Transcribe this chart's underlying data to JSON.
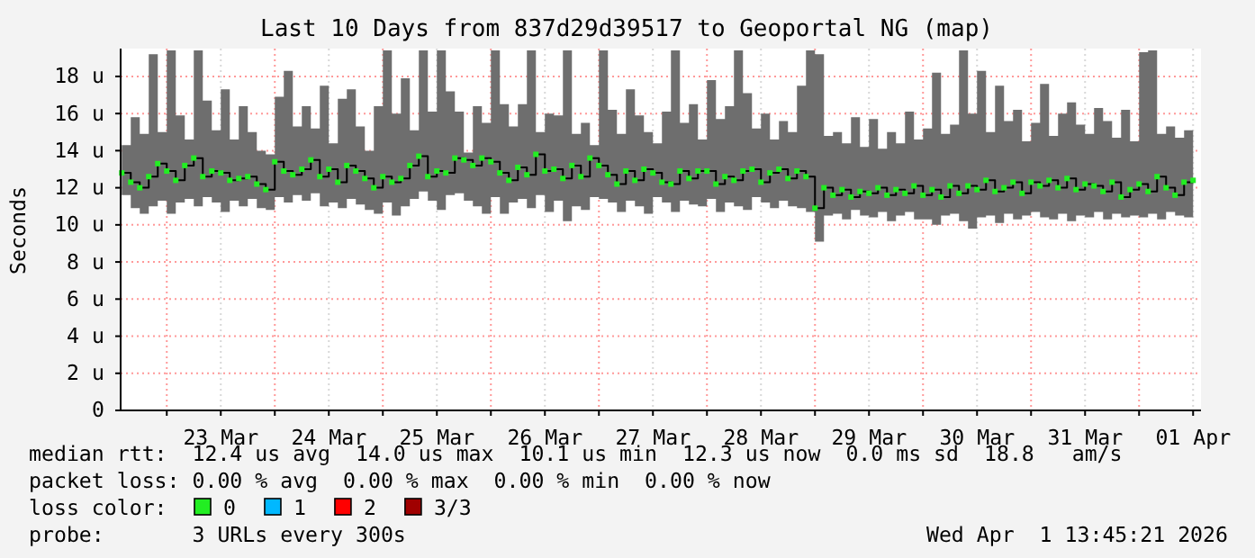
{
  "chart_data": {
    "type": "step",
    "title": "Last 10 Days from 837d29d39517 to Geoportal NG (map)",
    "ylabel": "Seconds",
    "x": [
      "2026-03-22T14:00",
      "2026-03-22T16:00",
      "2026-03-22T18:00",
      "2026-03-22T20:00",
      "2026-03-22T22:00",
      "2026-03-23T00:00",
      "2026-03-23T02:00",
      "2026-03-23T04:00",
      "2026-03-23T06:00",
      "2026-03-23T08:00",
      "2026-03-23T10:00",
      "2026-03-23T12:00",
      "2026-03-23T14:00",
      "2026-03-23T16:00",
      "2026-03-23T18:00",
      "2026-03-23T20:00",
      "2026-03-23T22:00",
      "2026-03-24T00:00",
      "2026-03-24T02:00",
      "2026-03-24T04:00",
      "2026-03-24T06:00",
      "2026-03-24T08:00",
      "2026-03-24T10:00",
      "2026-03-24T12:00",
      "2026-03-24T14:00",
      "2026-03-24T16:00",
      "2026-03-24T18:00",
      "2026-03-24T20:00",
      "2026-03-24T22:00",
      "2026-03-25T00:00",
      "2026-03-25T02:00",
      "2026-03-25T04:00",
      "2026-03-25T06:00",
      "2026-03-25T08:00",
      "2026-03-25T10:00",
      "2026-03-25T12:00",
      "2026-03-25T14:00",
      "2026-03-25T16:00",
      "2026-03-25T18:00",
      "2026-03-25T20:00",
      "2026-03-25T22:00",
      "2026-03-26T00:00",
      "2026-03-26T02:00",
      "2026-03-26T04:00",
      "2026-03-26T06:00",
      "2026-03-26T08:00",
      "2026-03-26T10:00",
      "2026-03-26T12:00",
      "2026-03-26T14:00",
      "2026-03-26T16:00",
      "2026-03-26T18:00",
      "2026-03-26T20:00",
      "2026-03-26T22:00",
      "2026-03-27T00:00",
      "2026-03-27T02:00",
      "2026-03-27T04:00",
      "2026-03-27T06:00",
      "2026-03-27T08:00",
      "2026-03-27T10:00",
      "2026-03-27T12:00",
      "2026-03-27T14:00",
      "2026-03-27T16:00",
      "2026-03-27T18:00",
      "2026-03-27T20:00",
      "2026-03-27T22:00",
      "2026-03-28T00:00",
      "2026-03-28T02:00",
      "2026-03-28T04:00",
      "2026-03-28T06:00",
      "2026-03-28T08:00",
      "2026-03-28T10:00",
      "2026-03-28T12:00",
      "2026-03-28T14:00",
      "2026-03-28T16:00",
      "2026-03-28T18:00",
      "2026-03-28T20:00",
      "2026-03-28T22:00",
      "2026-03-29T00:00",
      "2026-03-29T02:00",
      "2026-03-29T04:00",
      "2026-03-29T06:00",
      "2026-03-29T08:00",
      "2026-03-29T10:00",
      "2026-03-29T12:00",
      "2026-03-29T14:00",
      "2026-03-29T16:00",
      "2026-03-29T18:00",
      "2026-03-29T20:00",
      "2026-03-29T22:00",
      "2026-03-30T00:00",
      "2026-03-30T02:00",
      "2026-03-30T04:00",
      "2026-03-30T06:00",
      "2026-03-30T08:00",
      "2026-03-30T10:00",
      "2026-03-30T12:00",
      "2026-03-30T14:00",
      "2026-03-30T16:00",
      "2026-03-30T18:00",
      "2026-03-30T20:00",
      "2026-03-30T22:00",
      "2026-03-31T00:00",
      "2026-03-31T02:00",
      "2026-03-31T04:00",
      "2026-03-31T06:00",
      "2026-03-31T08:00",
      "2026-03-31T10:00",
      "2026-03-31T12:00",
      "2026-03-31T14:00",
      "2026-03-31T16:00",
      "2026-03-31T18:00",
      "2026-03-31T20:00",
      "2026-03-31T22:00",
      "2026-04-01T00:00",
      "2026-04-01T02:00",
      "2026-04-01T04:00",
      "2026-04-01T06:00",
      "2026-04-01T08:00",
      "2026-04-01T10:00",
      "2026-04-01T12:00"
    ],
    "series": [
      {
        "color": "#000000",
        "marker": "none",
        "values": [
          12.8,
          12.3,
          12.0,
          12.6,
          13.3,
          12.9,
          12.4,
          13.2,
          13.6,
          12.6,
          12.9,
          12.8,
          12.4,
          12.5,
          12.6,
          12.2,
          11.9,
          13.4,
          12.9,
          12.7,
          13.0,
          13.5,
          12.6,
          13.0,
          12.3,
          13.2,
          12.9,
          12.5,
          12.0,
          12.6,
          12.3,
          12.5,
          13.2,
          13.7,
          12.6,
          12.9,
          12.8,
          13.6,
          13.5,
          13.2,
          13.6,
          13.4,
          12.8,
          12.4,
          13.1,
          12.7,
          13.8,
          12.9,
          13.0,
          12.5,
          13.2,
          12.6,
          13.6,
          13.2,
          12.7,
          12.2,
          12.9,
          12.4,
          13.0,
          12.8,
          12.3,
          12.2,
          12.9,
          12.5,
          12.9,
          12.9,
          12.2,
          12.6,
          12.4,
          12.9,
          13.0,
          12.3,
          12.8,
          13.0,
          12.5,
          12.9,
          12.6,
          10.9,
          12.0,
          11.6,
          11.9,
          11.5,
          11.8,
          11.7,
          12.0,
          11.6,
          11.9,
          11.7,
          12.1,
          11.6,
          11.9,
          11.5,
          12.1,
          11.7,
          12.1,
          11.9,
          12.4,
          11.8,
          12.0,
          12.3,
          11.7,
          12.3,
          12.1,
          12.4,
          12.0,
          12.5,
          11.9,
          12.2,
          12.1,
          11.8,
          12.3,
          11.5,
          11.9,
          12.2,
          11.8,
          12.6,
          12.0,
          11.6,
          12.3,
          12.4
        ],
        "lower": [
          11.6,
          10.9,
          10.6,
          11.0,
          11.3,
          10.6,
          11.2,
          11.4,
          11.0,
          11.5,
          11.2,
          10.7,
          11.3,
          11.0,
          11.4,
          10.9,
          10.8,
          11.5,
          11.2,
          11.6,
          11.3,
          11.7,
          11.0,
          11.2,
          10.9,
          11.4,
          11.1,
          10.8,
          10.6,
          11.2,
          10.5,
          11.0,
          11.4,
          11.8,
          11.3,
          10.8,
          11.6,
          11.7,
          11.3,
          11.0,
          10.6,
          11.5,
          10.6,
          11.2,
          11.4,
          10.9,
          11.6,
          10.7,
          11.3,
          10.2,
          11.0,
          10.8,
          11.5,
          11.4,
          11.2,
          10.7,
          11.3,
          11.0,
          10.6,
          11.5,
          11.2,
          10.7,
          11.3,
          11.1,
          11.0,
          11.4,
          10.7,
          11.2,
          11.0,
          10.8,
          11.5,
          11.2,
          10.9,
          11.3,
          11.0,
          10.9,
          10.7,
          9.1,
          10.5,
          10.6,
          10.3,
          10.8,
          10.5,
          10.4,
          10.7,
          10.2,
          10.5,
          10.7,
          10.3,
          10.3,
          10.0,
          10.5,
          10.6,
          10.2,
          9.8,
          10.4,
          10.5,
          10.1,
          10.6,
          10.3,
          10.5,
          10.7,
          10.4,
          10.3,
          10.6,
          10.2,
          10.5,
          10.4,
          10.7,
          10.3,
          10.6,
          10.4,
          10.5,
          10.4,
          10.6,
          10.3,
          10.7,
          10.5,
          10.4,
          10.7
        ],
        "upper": [
          14.3,
          15.8,
          14.9,
          19.2,
          15.0,
          19.4,
          15.9,
          14.6,
          19.4,
          16.7,
          15.1,
          17.3,
          14.6,
          16.4,
          15.0,
          14.0,
          13.8,
          16.9,
          18.3,
          15.3,
          16.4,
          15.2,
          17.5,
          14.4,
          16.8,
          17.3,
          15.3,
          14.0,
          16.4,
          19.4,
          16.0,
          17.9,
          15.1,
          19.4,
          16.1,
          19.4,
          17.2,
          16.1,
          13.9,
          16.4,
          15.5,
          19.4,
          16.5,
          15.3,
          16.5,
          19.4,
          15.0,
          16.0,
          15.9,
          19.4,
          14.9,
          15.5,
          14.3,
          19.4,
          16.2,
          14.9,
          17.3,
          15.9,
          15.0,
          14.4,
          16.1,
          19.4,
          15.5,
          16.5,
          14.6,
          17.8,
          15.7,
          16.4,
          19.4,
          17.1,
          15.2,
          16.0,
          14.6,
          15.6,
          15.0,
          17.5,
          19.4,
          19.2,
          14.8,
          15.0,
          14.4,
          15.8,
          14.2,
          15.7,
          14.1,
          15.0,
          14.4,
          16.1,
          14.6,
          15.2,
          18.2,
          14.9,
          15.4,
          19.4,
          16.0,
          18.3,
          15.0,
          17.5,
          15.6,
          16.2,
          14.5,
          15.5,
          17.6,
          14.8,
          16.0,
          16.6,
          15.4,
          14.9,
          16.3,
          15.6,
          14.7,
          16.2,
          14.5,
          19.3,
          19.4,
          14.9,
          15.3,
          14.7,
          15.1,
          14.8
        ]
      },
      {
        "type": "scatter",
        "name": "0",
        "color": "#22ee22",
        "values": [
          12.8,
          12.3,
          12.0,
          12.6,
          13.3,
          12.9,
          12.4,
          13.2,
          13.6,
          12.6,
          12.9,
          12.8,
          12.4,
          12.5,
          12.6,
          12.2,
          11.9,
          13.4,
          12.9,
          12.7,
          13.0,
          13.5,
          12.6,
          13.0,
          12.3,
          13.2,
          12.9,
          12.5,
          12.0,
          12.6,
          12.3,
          12.5,
          13.2,
          13.7,
          12.6,
          12.9,
          12.8,
          13.6,
          13.5,
          13.2,
          13.6,
          13.4,
          12.8,
          12.4,
          13.1,
          12.7,
          13.8,
          12.9,
          13.0,
          12.5,
          13.2,
          12.6,
          13.6,
          13.2,
          12.7,
          12.2,
          12.9,
          12.4,
          13.0,
          12.8,
          12.3,
          12.2,
          12.9,
          12.5,
          12.9,
          12.9,
          12.2,
          12.6,
          12.4,
          12.9,
          13.0,
          12.3,
          12.8,
          13.0,
          12.5,
          12.9,
          12.6,
          10.9,
          12.0,
          11.6,
          11.9,
          11.5,
          11.8,
          11.7,
          12.0,
          11.6,
          11.9,
          11.7,
          12.1,
          11.6,
          11.9,
          11.5,
          12.1,
          11.7,
          12.1,
          11.9,
          12.4,
          11.8,
          12.0,
          12.3,
          11.7,
          12.3,
          12.1,
          12.4,
          12.0,
          12.5,
          11.9,
          12.2,
          12.1,
          11.8,
          12.3,
          11.5,
          11.9,
          12.2,
          11.8,
          12.6,
          12.0,
          11.6,
          12.3,
          12.4
        ]
      },
      {
        "type": "scatter",
        "name": "1",
        "color": "#00b8ff",
        "values": [
          null,
          null,
          null,
          null,
          null,
          null,
          null,
          null,
          null,
          null,
          null,
          null,
          null,
          null,
          null,
          null,
          null,
          null,
          null,
          null,
          null,
          null,
          null,
          null,
          null,
          null,
          null,
          null,
          null,
          null,
          null,
          null,
          null,
          null,
          null,
          null,
          null,
          null,
          null,
          null,
          null,
          null,
          null,
          null,
          null,
          null,
          null,
          null,
          null,
          null,
          null,
          null,
          null,
          null,
          null,
          null,
          null,
          null,
          null,
          null,
          null,
          null,
          null,
          null,
          null,
          null,
          null,
          null,
          null,
          null,
          null,
          null,
          null,
          null,
          null,
          null,
          null,
          null,
          null,
          null,
          null,
          null,
          null,
          null,
          null,
          null,
          null,
          null,
          null,
          null,
          null,
          null,
          null,
          null,
          null,
          null,
          null,
          null,
          null,
          null,
          null,
          null,
          null,
          null,
          null,
          null,
          null,
          null,
          null,
          null,
          null,
          null,
          null,
          null,
          null,
          null,
          null,
          null,
          null,
          null
        ]
      },
      {
        "type": "scatter",
        "name": "2",
        "color": "#ff0000",
        "values": [
          null,
          null,
          null,
          null,
          null,
          null,
          null,
          null,
          null,
          null,
          null,
          null,
          null,
          null,
          null,
          null,
          null,
          null,
          null,
          null,
          null,
          null,
          null,
          null,
          null,
          null,
          null,
          null,
          null,
          null,
          null,
          null,
          null,
          null,
          null,
          null,
          null,
          null,
          null,
          null,
          null,
          null,
          null,
          null,
          null,
          null,
          null,
          null,
          null,
          null,
          null,
          null,
          null,
          null,
          null,
          null,
          null,
          null,
          null,
          null,
          null,
          null,
          null,
          null,
          null,
          null,
          null,
          null,
          null,
          null,
          null,
          null,
          null,
          null,
          null,
          null,
          null,
          null,
          null,
          null,
          null,
          null,
          null,
          null,
          null,
          null,
          null,
          null,
          null,
          null,
          null,
          null,
          null,
          null,
          null,
          null,
          null,
          null,
          null,
          null,
          null,
          null,
          null,
          null,
          null,
          null,
          null,
          null,
          null,
          null,
          null,
          null,
          null,
          null,
          null,
          null,
          null,
          null,
          null,
          null
        ]
      },
      {
        "type": "scatter",
        "name": "3/3",
        "color": "#a00000",
        "values": [
          null,
          null,
          null,
          null,
          null,
          null,
          null,
          null,
          null,
          null,
          null,
          null,
          null,
          null,
          null,
          null,
          null,
          null,
          null,
          null,
          null,
          null,
          null,
          null,
          null,
          null,
          null,
          null,
          null,
          null,
          null,
          null,
          null,
          null,
          null,
          null,
          null,
          null,
          null,
          null,
          null,
          null,
          null,
          null,
          null,
          null,
          null,
          null,
          null,
          null,
          null,
          null,
          null,
          null,
          null,
          null,
          null,
          null,
          null,
          null,
          null,
          null,
          null,
          null,
          null,
          null,
          null,
          null,
          null,
          null,
          null,
          null,
          null,
          null,
          null,
          null,
          null,
          null,
          null,
          null,
          null,
          null,
          null,
          null,
          null,
          null,
          null,
          null,
          null,
          null,
          null,
          null,
          null,
          null,
          null,
          null,
          null,
          null,
          null,
          null,
          null,
          null,
          null,
          null,
          null,
          null,
          null,
          null,
          null,
          null,
          null,
          null,
          null,
          null,
          null,
          null,
          null,
          null,
          null,
          null
        ]
      }
    ],
    "xlim": [
      "2026-03-22T13:45",
      "2026-04-01T13:45"
    ],
    "xticks": [
      {
        "value": "2026-03-23T00:00",
        "label": null
      },
      {
        "value": "2026-03-23T12:00",
        "label": "23 Mar"
      },
      {
        "value": "2026-03-24T00:00",
        "label": null
      },
      {
        "value": "2026-03-24T12:00",
        "label": "24 Mar"
      },
      {
        "value": "2026-03-25T00:00",
        "label": null
      },
      {
        "value": "2026-03-25T12:00",
        "label": "25 Mar"
      },
      {
        "value": "2026-03-26T00:00",
        "label": null
      },
      {
        "value": "2026-03-26T12:00",
        "label": "26 Mar"
      },
      {
        "value": "2026-03-27T00:00",
        "label": null
      },
      {
        "value": "2026-03-27T12:00",
        "label": "27 Mar"
      },
      {
        "value": "2026-03-28T00:00",
        "label": null
      },
      {
        "value": "2026-03-28T12:00",
        "label": "28 Mar"
      },
      {
        "value": "2026-03-29T00:00",
        "label": null
      },
      {
        "value": "2026-03-29T12:00",
        "label": "29 Mar"
      },
      {
        "value": "2026-03-30T00:00",
        "label": null
      },
      {
        "value": "2026-03-30T12:00",
        "label": "30 Mar"
      },
      {
        "value": "2026-03-31T00:00",
        "label": null
      },
      {
        "value": "2026-03-31T12:00",
        "label": "31 Mar"
      },
      {
        "value": "2026-04-01T00:00",
        "label": null
      },
      {
        "value": "2026-04-01T12:00",
        "label": "01 Apr"
      }
    ],
    "ylim": [
      0,
      19.5
    ],
    "yticks": [
      0,
      {
        "value": 2,
        "label": "2 u"
      },
      {
        "value": 4,
        "label": "4 u"
      },
      {
        "value": 6,
        "label": "6 u"
      },
      {
        "value": 8,
        "label": "8 u"
      },
      {
        "value": 10,
        "label": "10 u"
      },
      {
        "value": 12,
        "label": "12 u"
      },
      {
        "value": 14,
        "label": "14 u"
      },
      {
        "value": 16,
        "label": "16 u"
      },
      {
        "value": 18,
        "label": "18 u"
      }
    ],
    "grid": true,
    "marker": "square",
    "legend": "bottom left",
    "legend_title": "loss color:",
    "annotations": [
      "median rtt:  12.4 us avg  14.0 us max  10.1 us min  12.3 us now  0.0 ms sd  18.8   am/s",
      "packet loss: 0.00 % avg  0.00 % max  0.00 % min  0.00 % now",
      "probe:       3 URLs every 300s",
      "Wed Apr  1 13:45:21 2026"
    ]
  }
}
